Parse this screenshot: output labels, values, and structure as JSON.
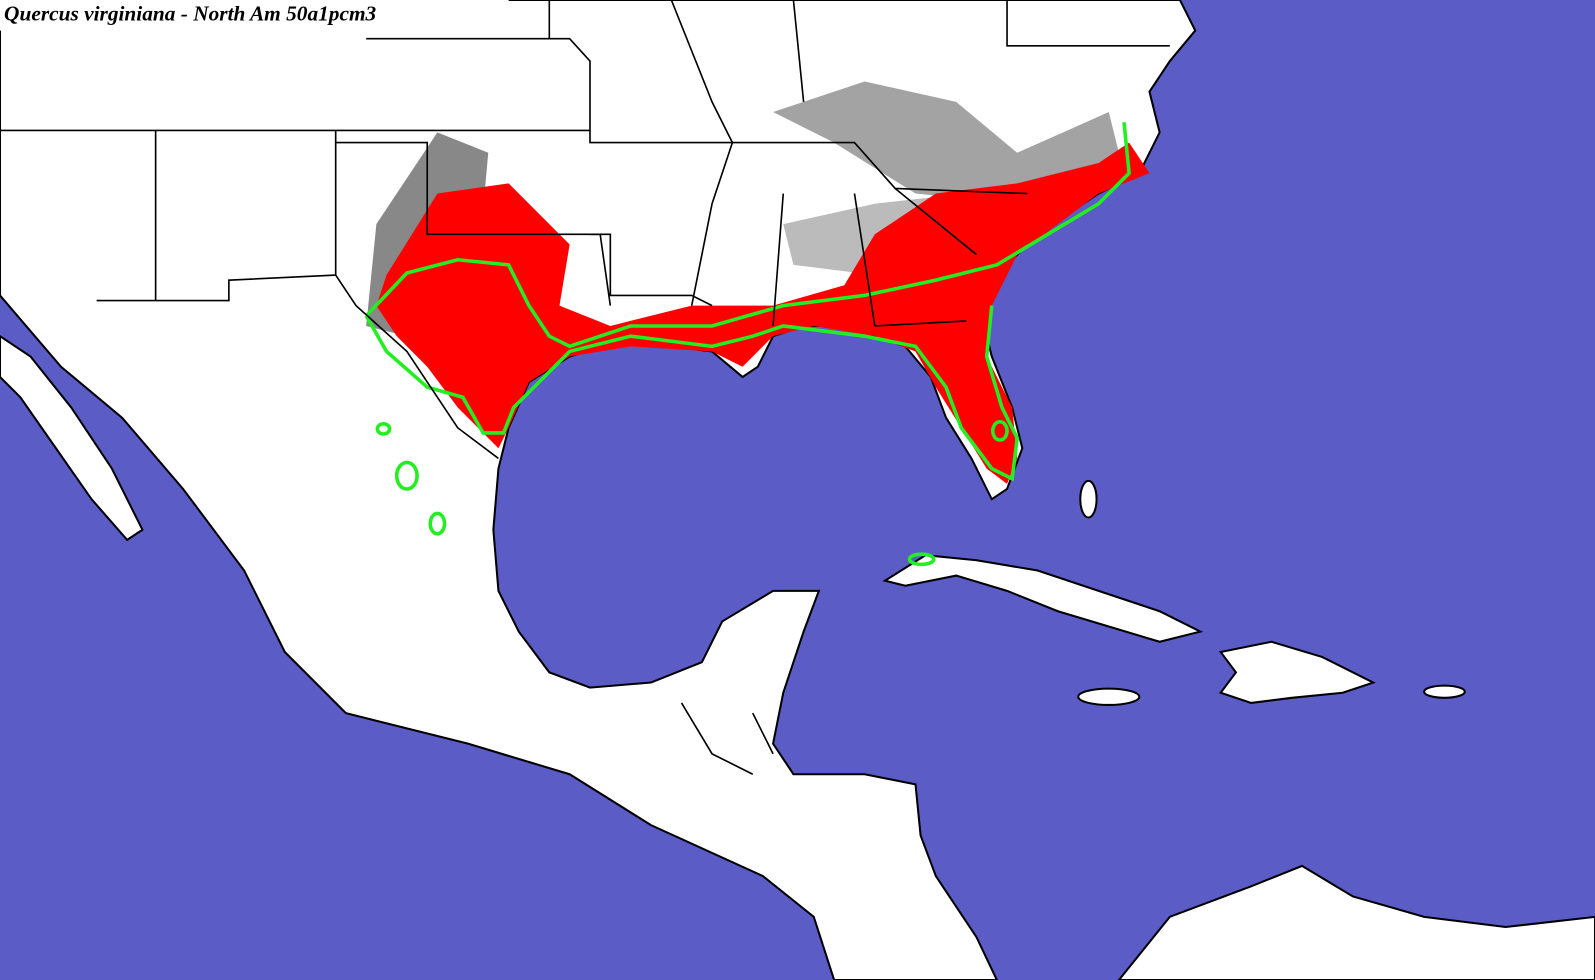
{
  "title": "Quercus virginiana - North Am 50a1pcm3"
}
